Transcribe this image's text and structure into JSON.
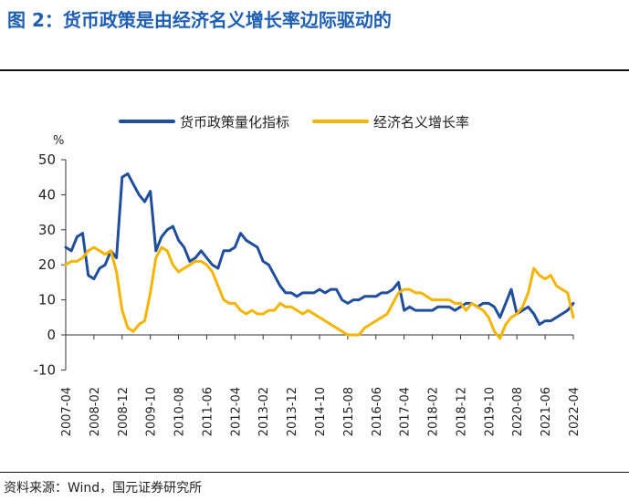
{
  "header": {
    "title": "图 2：货币政策是由经济名义增长率边际驱动的"
  },
  "footer": {
    "source": "资料来源：Wind，国元证券研究所"
  },
  "colors": {
    "series_blue": "#1f4e9c",
    "series_yellow": "#f5b400",
    "title": "#1f5fb3"
  },
  "chart_data": {
    "type": "line",
    "ylabel": "%",
    "ylim": [
      -10,
      50
    ],
    "yticks": [
      -10,
      0,
      10,
      20,
      30,
      40,
      50
    ],
    "xticks": [
      "2007-04",
      "2008-02",
      "2008-12",
      "2009-10",
      "2010-08",
      "2011-06",
      "2012-04",
      "2013-02",
      "2013-12",
      "2014-10",
      "2015-08",
      "2016-06",
      "2017-04",
      "2018-02",
      "2018-12",
      "2019-10",
      "2020-08",
      "2021-06",
      "2022-04"
    ],
    "x": [
      "2007-04",
      "2007-06",
      "2007-08",
      "2007-10",
      "2007-12",
      "2008-02",
      "2008-04",
      "2008-06",
      "2008-08",
      "2008-10",
      "2008-12",
      "2009-02",
      "2009-04",
      "2009-06",
      "2009-08",
      "2009-10",
      "2009-12",
      "2010-02",
      "2010-04",
      "2010-06",
      "2010-08",
      "2010-10",
      "2010-12",
      "2011-02",
      "2011-04",
      "2011-06",
      "2011-08",
      "2011-10",
      "2011-12",
      "2012-02",
      "2012-04",
      "2012-06",
      "2012-08",
      "2012-10",
      "2012-12",
      "2013-02",
      "2013-04",
      "2013-06",
      "2013-08",
      "2013-10",
      "2013-12",
      "2014-02",
      "2014-04",
      "2014-06",
      "2014-08",
      "2014-10",
      "2014-12",
      "2015-02",
      "2015-04",
      "2015-06",
      "2015-08",
      "2015-10",
      "2015-12",
      "2016-02",
      "2016-04",
      "2016-06",
      "2016-08",
      "2016-10",
      "2016-12",
      "2017-02",
      "2017-04",
      "2017-06",
      "2017-08",
      "2017-10",
      "2017-12",
      "2018-02",
      "2018-04",
      "2018-06",
      "2018-08",
      "2018-10",
      "2018-12",
      "2019-02",
      "2019-04",
      "2019-06",
      "2019-08",
      "2019-10",
      "2019-12",
      "2020-02",
      "2020-04",
      "2020-06",
      "2020-08",
      "2020-10",
      "2020-12",
      "2021-02",
      "2021-04",
      "2021-06",
      "2021-08",
      "2021-10",
      "2021-12",
      "2022-02",
      "2022-04"
    ],
    "series": [
      {
        "name": "货币政策量化指标",
        "color": "#1f4e9c",
        "values": [
          25,
          24,
          28,
          29,
          17,
          16,
          19,
          20,
          24,
          22,
          45,
          46,
          43,
          40,
          38,
          41,
          24,
          28,
          30,
          31,
          27,
          25,
          21,
          22,
          24,
          22,
          20,
          19,
          24,
          24,
          25,
          29,
          27,
          26,
          25,
          21,
          20,
          17,
          14,
          12,
          12,
          11,
          12,
          12,
          12,
          13,
          12,
          13,
          13,
          10,
          9,
          10,
          10,
          11,
          11,
          11,
          12,
          12,
          13,
          15,
          7,
          8,
          7,
          7,
          7,
          7,
          8,
          8,
          8,
          7,
          8,
          9,
          9,
          8,
          9,
          9,
          8,
          5,
          9,
          13,
          6,
          7,
          8,
          6,
          3,
          4,
          4,
          5,
          6,
          7,
          9
        ]
      },
      {
        "name": "经济名义增长率",
        "color": "#f5b400",
        "values": [
          20,
          21,
          21,
          22,
          24,
          25,
          24,
          23,
          24,
          18,
          7,
          2,
          1,
          3,
          4,
          12,
          22,
          25,
          24,
          20,
          18,
          19,
          20,
          21,
          21,
          20,
          18,
          14,
          10,
          9,
          9,
          7,
          6,
          7,
          6,
          6,
          7,
          7,
          9,
          8,
          8,
          7,
          6,
          7,
          6,
          5,
          4,
          3,
          2,
          1,
          0,
          0,
          0,
          2,
          3,
          4,
          5,
          6,
          9,
          12,
          13,
          13,
          12,
          12,
          11,
          10,
          10,
          10,
          10,
          9,
          9,
          7,
          9,
          8,
          7,
          5,
          1,
          -1,
          3,
          5,
          6,
          8,
          12,
          19,
          17,
          16,
          17,
          14,
          13,
          12,
          5
        ]
      }
    ]
  }
}
